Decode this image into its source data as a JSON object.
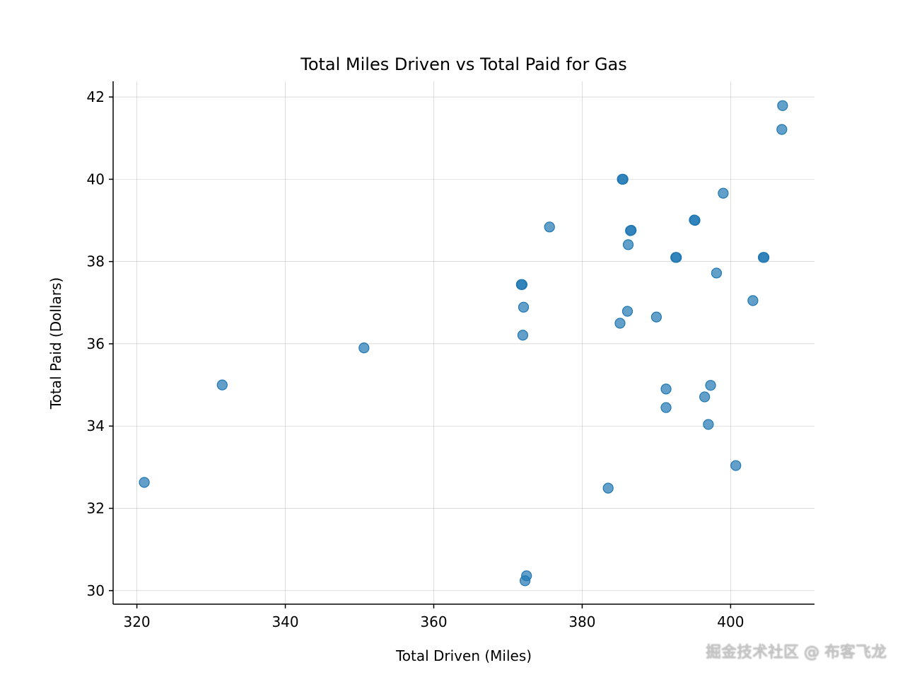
{
  "chart_data": {
    "type": "scatter",
    "title": "Total Miles Driven vs Total Paid for Gas",
    "xlabel": "Total Driven (Miles)",
    "ylabel": "Total Paid (Dollars)",
    "xlim": [
      316.8,
      411.3
    ],
    "ylim": [
      29.67,
      42.38
    ],
    "xticks": [
      320,
      340,
      360,
      380,
      400
    ],
    "yticks": [
      30,
      32,
      34,
      36,
      38,
      40,
      42
    ],
    "grid": true,
    "color": "#1f77b4",
    "points": [
      [
        407.0,
        41.79
      ],
      [
        406.9,
        41.21
      ],
      [
        385.4,
        40.0
      ],
      [
        385.5,
        40.0
      ],
      [
        399.0,
        39.66
      ],
      [
        395.1,
        39.01
      ],
      [
        395.2,
        39.0
      ],
      [
        375.6,
        38.84
      ],
      [
        386.5,
        38.75
      ],
      [
        386.6,
        38.76
      ],
      [
        386.2,
        38.41
      ],
      [
        392.6,
        38.1
      ],
      [
        392.7,
        38.1
      ],
      [
        404.4,
        38.1
      ],
      [
        404.5,
        38.1
      ],
      [
        398.1,
        37.72
      ],
      [
        371.8,
        37.44
      ],
      [
        371.9,
        37.44
      ],
      [
        403.0,
        37.05
      ],
      [
        372.1,
        36.89
      ],
      [
        386.1,
        36.79
      ],
      [
        390.0,
        36.65
      ],
      [
        385.1,
        36.5
      ],
      [
        372.0,
        36.21
      ],
      [
        350.6,
        35.9
      ],
      [
        331.5,
        35.0
      ],
      [
        397.3,
        34.99
      ],
      [
        391.3,
        34.9
      ],
      [
        396.5,
        34.71
      ],
      [
        391.3,
        34.45
      ],
      [
        397.0,
        34.04
      ],
      [
        400.7,
        33.04
      ],
      [
        321.0,
        32.63
      ],
      [
        383.5,
        32.49
      ],
      [
        372.5,
        30.36
      ],
      [
        372.3,
        30.24
      ]
    ]
  },
  "watermark": "掘金技术社区 @ 布客飞龙"
}
